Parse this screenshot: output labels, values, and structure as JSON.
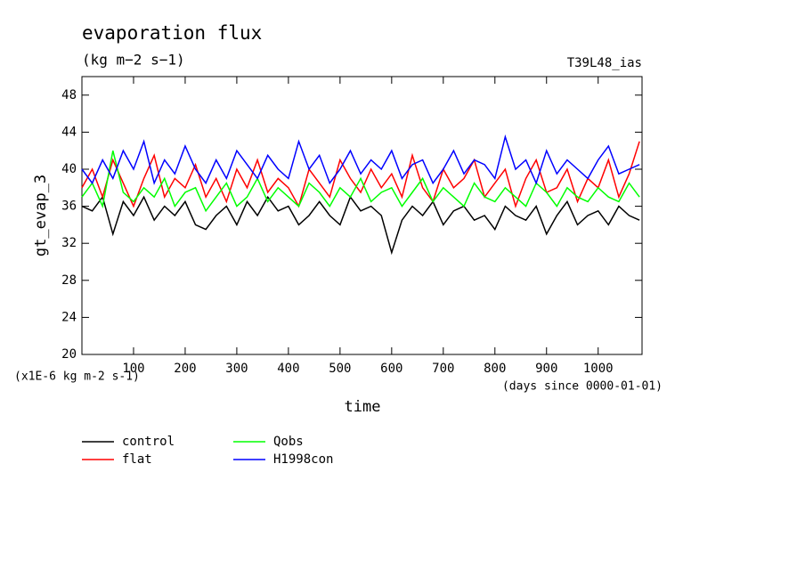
{
  "chart_data": {
    "type": "line",
    "title": "evaporation flux",
    "subtitle": "(kg m−2 s−1)",
    "annotation": "T39L48_ias",
    "ylabel": "gt_evap_3",
    "yunits": "(x1E-6 kg m-2 s-1)",
    "xunits": "(days since 0000-01-01)",
    "xlabel": "time",
    "x": [
      0,
      20,
      40,
      60,
      80,
      100,
      120,
      140,
      160,
      180,
      200,
      220,
      240,
      260,
      280,
      300,
      320,
      340,
      360,
      380,
      400,
      420,
      440,
      460,
      480,
      500,
      520,
      540,
      560,
      580,
      600,
      620,
      640,
      660,
      680,
      700,
      720,
      740,
      760,
      780,
      800,
      820,
      840,
      860,
      880,
      900,
      920,
      940,
      960,
      980,
      1000,
      1020,
      1040,
      1060,
      1080
    ],
    "xlim": [
      0,
      1085
    ],
    "xticks": [
      100,
      200,
      300,
      400,
      500,
      600,
      700,
      800,
      900,
      1000
    ],
    "ylim": [
      20,
      50
    ],
    "yticks": [
      20,
      24,
      28,
      32,
      36,
      40,
      44,
      48
    ],
    "series": [
      {
        "name": "control",
        "color": "#000000",
        "values": [
          36,
          35.5,
          37,
          33,
          36.5,
          35,
          37,
          34.5,
          36,
          35,
          36.5,
          34,
          33.5,
          35,
          36,
          34,
          36.5,
          35,
          37,
          35.5,
          36,
          34,
          35,
          36.5,
          35,
          34,
          37,
          35.5,
          36,
          35,
          31,
          34.5,
          36,
          35,
          36.5,
          34,
          35.5,
          36,
          34.5,
          35,
          33.5,
          36,
          35,
          34.5,
          36,
          33,
          35,
          36.5,
          34,
          35,
          35.5,
          34,
          36,
          35,
          34.5
        ]
      },
      {
        "name": "flat",
        "color": "#ff0000",
        "values": [
          38,
          40,
          37,
          41,
          38.5,
          36,
          39,
          41.5,
          37,
          39,
          38,
          40.5,
          37,
          39,
          36.5,
          40,
          38,
          41,
          37.5,
          39,
          38,
          36,
          40,
          38.5,
          37,
          41,
          39,
          37.5,
          40,
          38,
          39.5,
          37,
          41.5,
          38,
          36.5,
          40,
          38,
          39,
          41,
          37,
          38.5,
          40,
          36,
          39,
          41,
          37.5,
          38,
          40,
          36.5,
          39,
          38,
          41,
          37,
          39.5,
          43
        ]
      },
      {
        "name": "Qobs",
        "color": "#00ff00",
        "values": [
          37,
          38.5,
          36,
          42,
          37.5,
          36.5,
          38,
          37,
          39,
          36,
          37.5,
          38,
          35.5,
          37,
          38.5,
          36,
          37,
          39,
          36.5,
          38,
          37,
          36,
          38.5,
          37.5,
          36,
          38,
          37,
          39,
          36.5,
          37.5,
          38,
          36,
          37.5,
          39,
          36.5,
          38,
          37,
          36,
          38.5,
          37,
          36.5,
          38,
          37,
          36,
          38.5,
          37.5,
          36,
          38,
          37,
          36.5,
          38,
          37,
          36.5,
          38.5,
          37
        ]
      },
      {
        "name": "H1998con",
        "color": "#0000ff",
        "values": [
          40,
          38.5,
          41,
          39,
          42,
          40,
          43,
          38.5,
          41,
          39.5,
          42.5,
          40,
          38.5,
          41,
          39,
          42,
          40.5,
          39,
          41.5,
          40,
          39,
          43,
          40,
          41.5,
          38.5,
          40,
          42,
          39.5,
          41,
          40,
          42,
          39,
          40.5,
          41,
          38.5,
          40,
          42,
          39.5,
          41,
          40.5,
          39,
          43.5,
          40,
          41,
          38.5,
          42,
          39.5,
          41,
          40,
          39,
          41,
          42.5,
          39.5,
          40,
          40.5
        ]
      }
    ]
  }
}
